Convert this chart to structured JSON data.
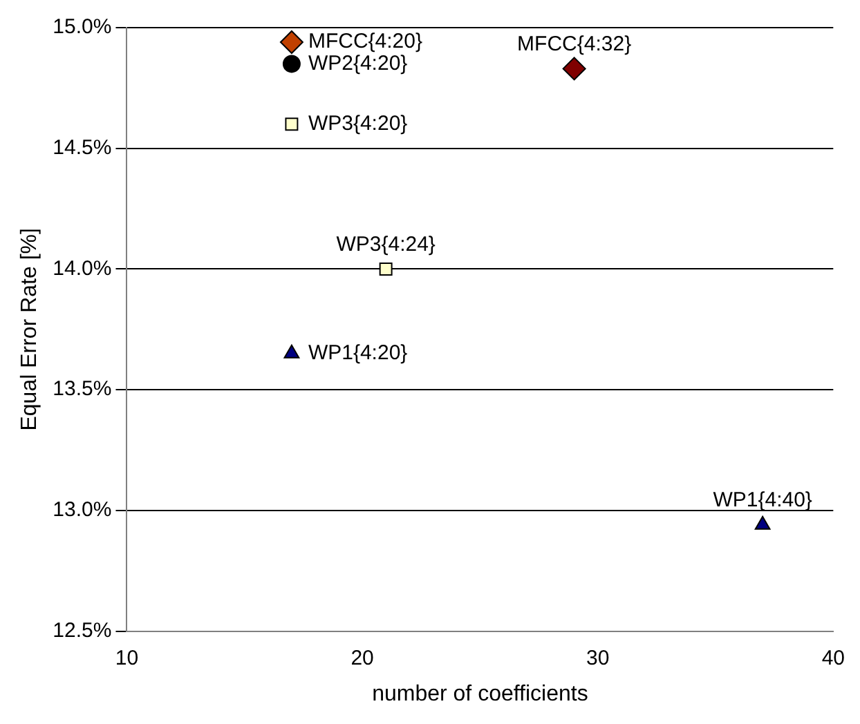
{
  "chart_data": {
    "type": "scatter",
    "xlabel": "number of coefficients",
    "ylabel": "Equal Error Rate [%]",
    "xlim": [
      10,
      40
    ],
    "xticks": [
      10,
      20,
      30,
      40
    ],
    "ylim": [
      12.5,
      15.0
    ],
    "yticks": [
      {
        "value": 12.5,
        "label": "12.5%"
      },
      {
        "value": 13.0,
        "label": "13.0%"
      },
      {
        "value": 13.5,
        "label": "13.5%"
      },
      {
        "value": 14.0,
        "label": "14.0%"
      },
      {
        "value": 14.5,
        "label": "14.5%"
      },
      {
        "value": 15.0,
        "label": "15.0%"
      }
    ],
    "grid": "y",
    "legend": false,
    "series": [
      {
        "marker": "diamond",
        "x": [
          17,
          29
        ],
        "values": [
          14.94,
          14.83
        ],
        "colors": [
          "#c04000",
          "#800000"
        ],
        "value_labels": [
          "MFCC{4:20}",
          "MFCC{4:32}"
        ]
      },
      {
        "marker": "circle",
        "color": "#000000",
        "x": [
          17
        ],
        "values": [
          14.85
        ],
        "value_labels": [
          "WP2{4:20}"
        ]
      },
      {
        "marker": "square",
        "color": "#ffffcc",
        "x": [
          17,
          21
        ],
        "values": [
          14.6,
          14.0
        ],
        "value_labels": [
          "WP3{4:20}",
          "WP3{4:24}"
        ]
      },
      {
        "marker": "triangle",
        "color": "#000080",
        "x": [
          17,
          37
        ],
        "values": [
          13.65,
          12.94
        ],
        "value_labels": [
          "WP1{4:20}",
          "WP1{4:40}"
        ]
      }
    ]
  }
}
